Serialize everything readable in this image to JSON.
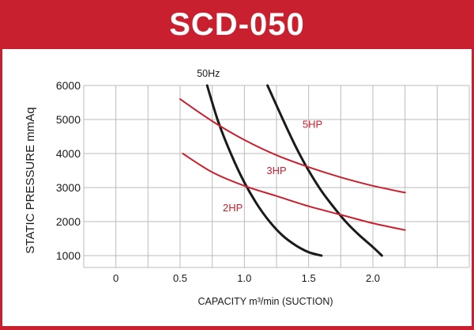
{
  "title": "SCD-050",
  "colors": {
    "frame": "#c8202e",
    "hp_curve": "#c8202e",
    "hz_curve": "#1a1a1a",
    "grid": "#bbbbbb"
  },
  "chart_data": {
    "type": "line",
    "title": "SCD-050",
    "xlabel": "CAPACITY m³/min (SUCTION)",
    "ylabel": "STATIC PRESSURE mmAq",
    "xlim": [
      -0.25,
      2.75
    ],
    "ylim": [
      650,
      6000
    ],
    "x_ticks": [
      "0",
      "0.5",
      "1.0",
      "1.5",
      "2.0"
    ],
    "x_tick_values": [
      0,
      0.5,
      1.0,
      1.5,
      2.0
    ],
    "y_ticks": [
      "1000",
      "2000",
      "3000",
      "4000",
      "5000",
      "6000"
    ],
    "y_tick_values": [
      1000,
      2000,
      3000,
      4000,
      5000,
      6000
    ],
    "grid": true,
    "series": [
      {
        "name": "50Hz",
        "group": "hz",
        "label_at": [
          0.72,
          6260
        ],
        "x": [
          0.71,
          0.8,
          0.9,
          1.0,
          1.1,
          1.2,
          1.3,
          1.4,
          1.5,
          1.6
        ],
        "y": [
          6000,
          4900,
          3950,
          3150,
          2500,
          1980,
          1580,
          1300,
          1100,
          1000
        ]
      },
      {
        "name": "",
        "group": "hz",
        "x": [
          1.18,
          1.3,
          1.4,
          1.5,
          1.6,
          1.7,
          1.8,
          1.9,
          2.0,
          2.07
        ],
        "y": [
          6000,
          5000,
          4200,
          3500,
          2900,
          2400,
          1950,
          1580,
          1250,
          1000
        ]
      },
      {
        "name": "5HP",
        "group": "hp",
        "label_at": [
          1.53,
          4750
        ],
        "x": [
          0.5,
          0.75,
          1.0,
          1.25,
          1.5,
          1.75,
          2.0,
          2.25
        ],
        "y": [
          5600,
          4950,
          4400,
          3950,
          3600,
          3300,
          3050,
          2850
        ]
      },
      {
        "name": "3HP",
        "group": "hp",
        "label_at": [
          1.25,
          3400
        ],
        "x": [
          0.52,
          0.75,
          1.0,
          1.25,
          1.5,
          1.75,
          2.0,
          2.25
        ],
        "y": [
          4000,
          3450,
          3050,
          2750,
          2450,
          2200,
          1950,
          1750
        ]
      },
      {
        "name": "2HP",
        "group": "hp",
        "label_at": [
          0.91,
          2300
        ],
        "x": [],
        "y": []
      }
    ]
  }
}
